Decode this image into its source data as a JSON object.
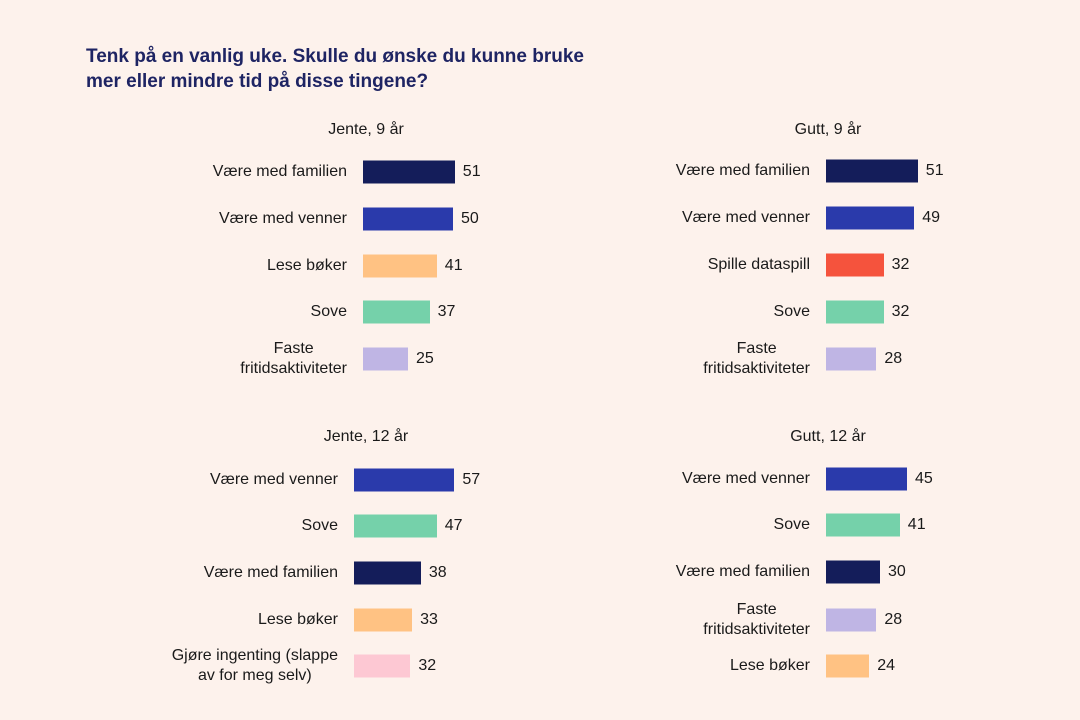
{
  "colors": {
    "Være med familien": "#141d5a",
    "Være med venner": "#2a3aab",
    "Lese bøker": "#ffc283",
    "Sove": "#75d1aa",
    "Faste fritidsaktiviteter": "#bfb5e4",
    "Spille dataspill": "#f5533d",
    "Gjøre ingenting (slappe av for meg selv)": "#fdc8d3"
  },
  "chart_data": {
    "title": "Tenk på en vanlig uke. Skulle du ønske du kunne bruke mer eller mindre tid på disse tingene?",
    "type": "bar",
    "orientation": "horizontal",
    "panels": [
      {
        "title": "Jente, 9 år",
        "categories": [
          "Være med familien",
          "Være med venner",
          "Lese bøker",
          "Sove",
          "Faste fritidsaktiviteter"
        ],
        "values": [
          51,
          50,
          41,
          37,
          25
        ]
      },
      {
        "title": "Gutt, 9 år",
        "categories": [
          "Være med familien",
          "Være med venner",
          "Spille dataspill",
          "Sove",
          "Faste fritidsaktiviteter"
        ],
        "values": [
          51,
          49,
          32,
          32,
          28
        ]
      },
      {
        "title": "Jente, 12 år",
        "categories": [
          "Være med venner",
          "Sove",
          "Være med familien",
          "Lese bøker",
          "Gjøre ingenting (slappe av for meg selv)"
        ],
        "values": [
          57,
          47,
          38,
          33,
          32
        ]
      },
      {
        "title": "Gutt, 12 år",
        "categories": [
          "Være med venner",
          "Sove",
          "Være med familien",
          "Faste fritidsaktiviteter",
          "Lese bøker"
        ],
        "values": [
          45,
          41,
          30,
          28,
          24
        ]
      }
    ]
  }
}
